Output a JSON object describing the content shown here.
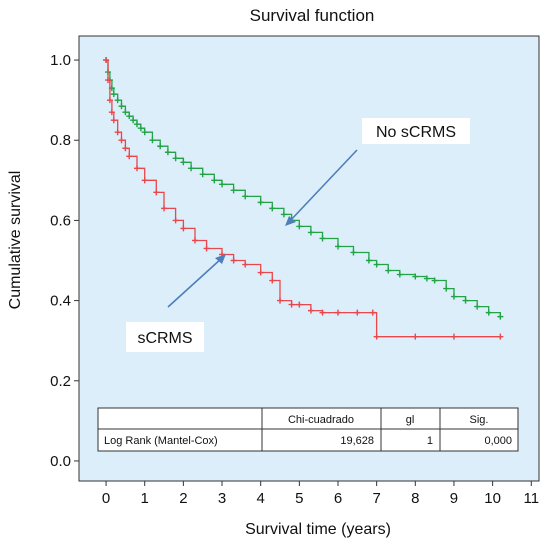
{
  "chart_data": {
    "type": "line",
    "title": "Survival function",
    "xlabel": "Survival time (years)",
    "ylabel": "Cumulative survival",
    "xlim": [
      -0.7,
      11.2
    ],
    "ylim": [
      -0.05,
      1.06
    ],
    "x_ticks": [
      "0",
      "1",
      "2",
      "3",
      "4",
      "5",
      "6",
      "7",
      "8",
      "9",
      "10",
      "11"
    ],
    "y_ticks": [
      "0.0",
      "0.2",
      "0.4",
      "0.6",
      "0.8",
      "1.0"
    ],
    "background": "#dceefa",
    "series": [
      {
        "name": "No sCRMS",
        "color": "#21a346",
        "x": [
          0,
          0.05,
          0.1,
          0.15,
          0.2,
          0.3,
          0.4,
          0.5,
          0.6,
          0.7,
          0.8,
          0.9,
          1.0,
          1.2,
          1.4,
          1.6,
          1.8,
          2.0,
          2.2,
          2.5,
          2.8,
          3.0,
          3.3,
          3.6,
          4.0,
          4.3,
          4.6,
          4.8,
          5.0,
          5.3,
          5.6,
          6.0,
          6.4,
          6.8,
          7.0,
          7.3,
          7.6,
          8.0,
          8.3,
          8.5,
          8.8,
          9.0,
          9.3,
          9.6,
          9.9,
          10.2
        ],
        "values": [
          1.0,
          0.97,
          0.95,
          0.93,
          0.915,
          0.9,
          0.885,
          0.87,
          0.86,
          0.85,
          0.84,
          0.83,
          0.82,
          0.8,
          0.785,
          0.77,
          0.755,
          0.745,
          0.73,
          0.715,
          0.7,
          0.69,
          0.675,
          0.66,
          0.645,
          0.63,
          0.615,
          0.6,
          0.585,
          0.57,
          0.555,
          0.535,
          0.52,
          0.5,
          0.49,
          0.475,
          0.465,
          0.46,
          0.455,
          0.45,
          0.43,
          0.41,
          0.4,
          0.385,
          0.37,
          0.36
        ]
      },
      {
        "name": "sCRMS",
        "color": "#e8474c",
        "x": [
          0,
          0.05,
          0.1,
          0.15,
          0.2,
          0.3,
          0.4,
          0.5,
          0.6,
          0.8,
          1.0,
          1.3,
          1.5,
          1.8,
          2.0,
          2.3,
          2.6,
          3.0,
          3.3,
          3.6,
          4.0,
          4.3,
          4.5,
          4.8,
          5.0,
          5.3,
          5.6,
          6.0,
          6.5,
          6.9,
          7.0,
          8.0,
          9.0,
          10.2
        ],
        "values": [
          1.0,
          0.95,
          0.9,
          0.87,
          0.85,
          0.82,
          0.8,
          0.78,
          0.76,
          0.73,
          0.7,
          0.67,
          0.63,
          0.6,
          0.58,
          0.55,
          0.53,
          0.515,
          0.5,
          0.49,
          0.47,
          0.45,
          0.4,
          0.39,
          0.39,
          0.375,
          0.37,
          0.37,
          0.37,
          0.37,
          0.31,
          0.31,
          0.31,
          0.31
        ]
      }
    ],
    "annotations": [
      "No sCRMS",
      "sCRMS"
    ],
    "table": {
      "headers": [
        "",
        "Chi-cuadrado",
        "gl",
        "Sig."
      ],
      "rows": [
        [
          "Log Rank (Mantel-Cox)",
          "19,628",
          "1",
          "0,000"
        ]
      ]
    }
  }
}
